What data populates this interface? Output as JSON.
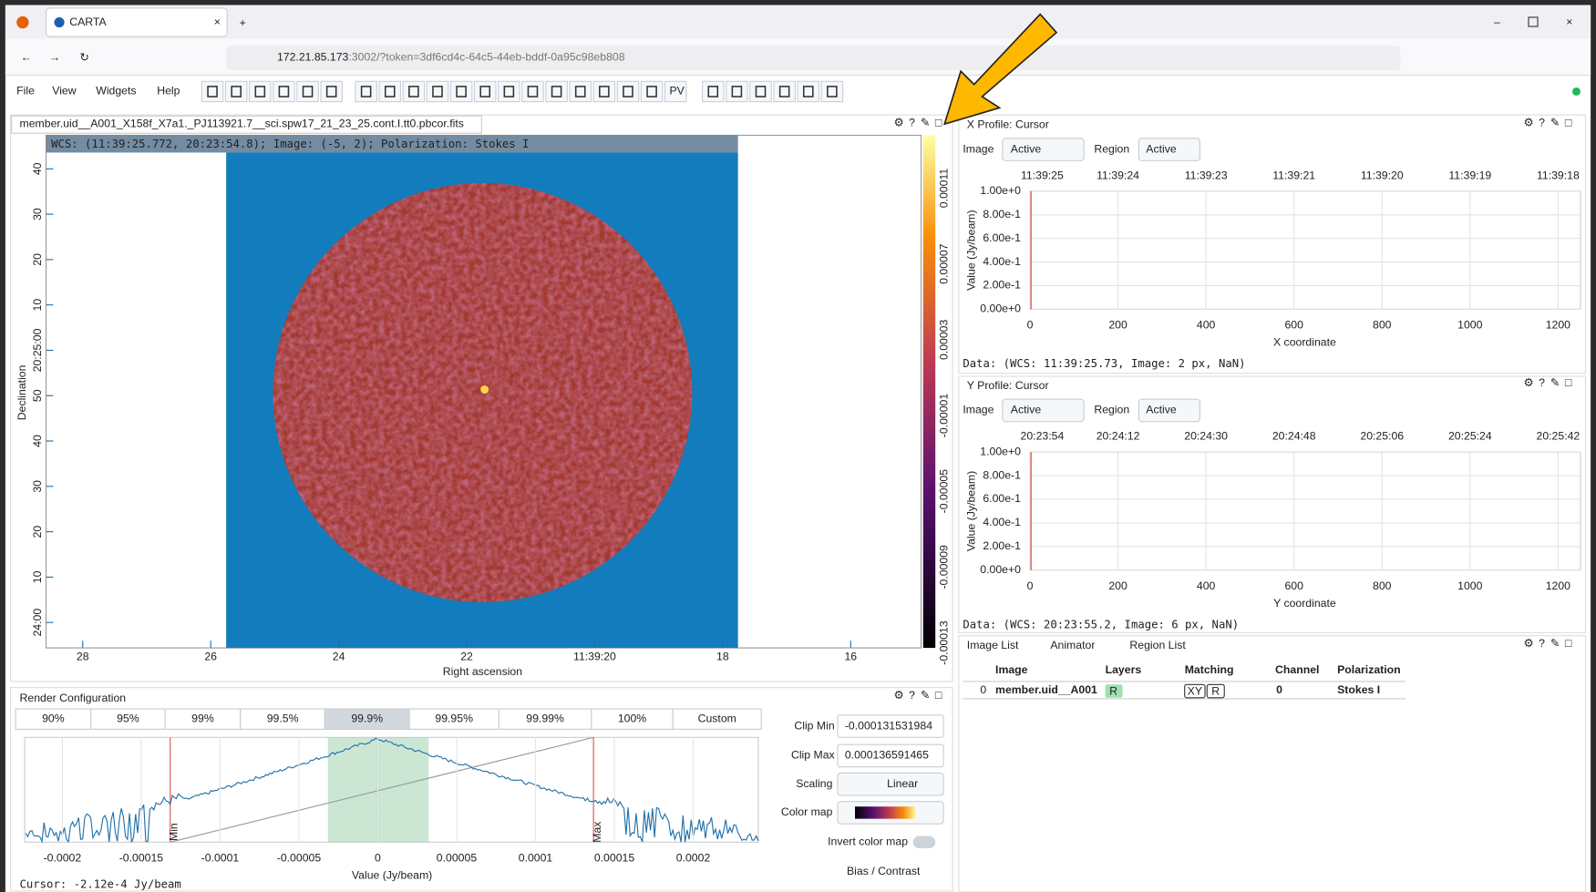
{
  "browser": {
    "tab_title": "CARTA",
    "url_host": "172.21.85.173",
    "url_rest": ":3002/?token=3df6cd4c-64c5-44eb-bddf-0a95c98eb808"
  },
  "menu": [
    "File",
    "View",
    "Widgets",
    "Help"
  ],
  "toolbar": {
    "pv": "PV"
  },
  "image_view": {
    "filename": "member.uid__A001_X158f_X7a1._PJ113921.7__sci.spw17_21_23_25.cont.I.tt0.pbcor.fits",
    "cursor_info": "WCS: (11:39:25.772, 20:23:54.8); Image: (-5, 2); Polarization: Stokes I",
    "y_axis_label": "Declination",
    "x_axis_label": "Right ascension",
    "y_ticks": [
      "40",
      "30",
      "20",
      "10",
      "20:25:00",
      "50",
      "40",
      "30",
      "20",
      "10",
      "24:00"
    ],
    "x_ticks": [
      "28",
      "26",
      "24",
      "22",
      "11:39:20",
      "18",
      "16"
    ],
    "colorbar_ticks": [
      "0.00011",
      "0.00007",
      "0.00003",
      "-0.00001",
      "-0.00005",
      "-0.00009",
      "-0.00013"
    ]
  },
  "x_profile": {
    "tab": "X Profile: Cursor",
    "image_label": "Image",
    "image_value": "Active",
    "region_label": "Region",
    "region_value": "Active",
    "top_ticks": [
      "11:39:25",
      "11:39:24",
      "11:39:23",
      "11:39:21",
      "11:39:20",
      "11:39:19",
      "11:39:18"
    ],
    "y_ticks": [
      "1.00e+0",
      "8.00e-1",
      "6.00e-1",
      "4.00e-1",
      "2.00e-1",
      "0.00e+0"
    ],
    "x_ticks": [
      "0",
      "200",
      "400",
      "600",
      "800",
      "1000",
      "1200"
    ],
    "x_label": "X coordinate",
    "y_label": "Value (Jy/beam)",
    "data_info": "Data: (WCS: 11:39:25.73, Image: 2 px, NaN)"
  },
  "y_profile": {
    "tab": "Y Profile: Cursor",
    "image_label": "Image",
    "image_value": "Active",
    "region_label": "Region",
    "region_value": "Active",
    "top_ticks": [
      "20:23:54",
      "20:24:12",
      "20:24:30",
      "20:24:48",
      "20:25:06",
      "20:25:24",
      "20:25:42"
    ],
    "y_ticks": [
      "1.00e+0",
      "8.00e-1",
      "6.00e-1",
      "4.00e-1",
      "2.00e-1",
      "0.00e+0"
    ],
    "x_ticks": [
      "0",
      "200",
      "400",
      "600",
      "800",
      "1000",
      "1200"
    ],
    "x_label": "Y coordinate",
    "y_label": "Value (Jy/beam)",
    "data_info": "Data: (WCS: 20:23:55.2, Image: 6 px, NaN)"
  },
  "image_list": {
    "tabs": [
      "Image List",
      "Animator",
      "Region List"
    ],
    "headers": [
      "Image",
      "Layers",
      "Matching",
      "Channel",
      "Polarization"
    ],
    "row": {
      "index": "0",
      "image": "member.uid__A001",
      "layers": "R",
      "matching": [
        "XY",
        "R"
      ],
      "channel": "0",
      "polarization": "Stokes I"
    }
  },
  "render_config": {
    "tab": "Render Configuration",
    "percentiles": [
      "90%",
      "95%",
      "99%",
      "99.5%",
      "99.9%",
      "99.95%",
      "99.99%",
      "100%",
      "Custom"
    ],
    "clip_min_label": "Clip Min",
    "clip_min_value": "-0.000131531984",
    "clip_max_label": "Clip Max",
    "clip_max_value": "0.000136591465",
    "scaling_label": "Scaling",
    "scaling_value": "Linear",
    "colormap_label": "Color map",
    "invert_label": "Invert color map",
    "bias_label": "Bias / Contrast",
    "x_ticks": [
      "-0.0002",
      "-0.00015",
      "-0.0001",
      "-0.00005",
      "0",
      "0.00005",
      "0.0001",
      "0.00015",
      "0.0002"
    ],
    "x_label": "Value (Jy/beam)",
    "min_marker": "Min",
    "max_marker": "Max",
    "cursor_info": "Cursor: -2.12e-4 Jy/beam"
  }
}
